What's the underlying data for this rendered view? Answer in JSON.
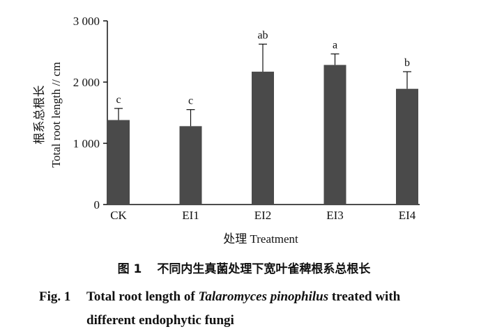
{
  "chart_data": {
    "type": "bar",
    "categories": [
      "CK",
      "EI1",
      "EI2",
      "EI3",
      "EI4"
    ],
    "values": [
      1380,
      1280,
      2170,
      2280,
      1890
    ],
    "errors": [
      190,
      270,
      450,
      180,
      280
    ],
    "significance": [
      "c",
      "c",
      "ab",
      "a",
      "b"
    ],
    "ylim": [
      0,
      3000
    ],
    "yticks": [
      0,
      1000,
      2000,
      3000
    ],
    "ytick_labels": [
      "0",
      "1 000",
      "2 000",
      "3 000"
    ],
    "ylabel_cn": "根系总根长",
    "ylabel_en": "Total root length // cm",
    "xlabel": "处理 Treatment",
    "bar_color": "#4a4a4a"
  },
  "caption": {
    "cn_fig_no": "图 1",
    "cn_text": "不同内生真菌处理下宽叶雀稗根系总根长",
    "en_fig_no": "Fig. 1",
    "en_text_1": "Total root length of",
    "en_species": "Talaromyces pinophilus",
    "en_text_2": "treated with",
    "en_text_3": "different endophytic fungi"
  }
}
